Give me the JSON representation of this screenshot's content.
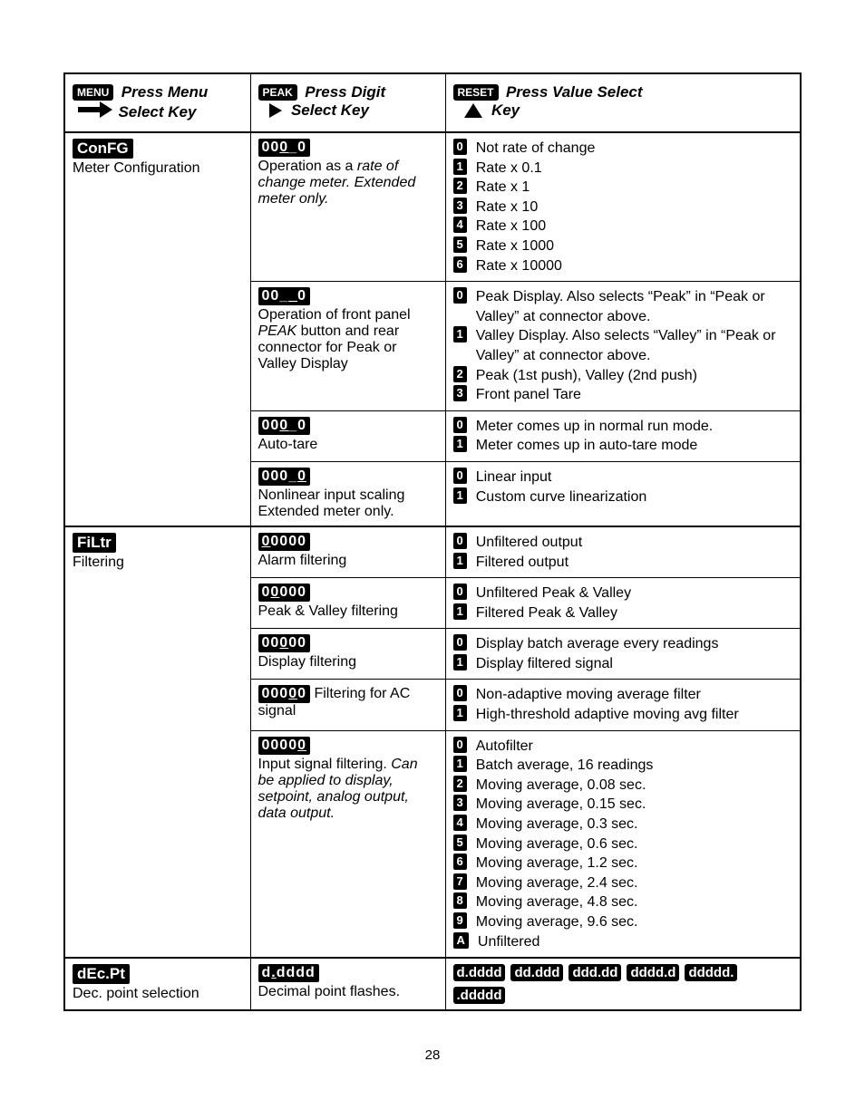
{
  "page_number": "28",
  "header": {
    "menu_badge": "MENU",
    "menu_line1": "Press Menu",
    "menu_line2": "Select Key",
    "peak_badge": "PEAK",
    "peak_line1": "Press Digit",
    "peak_line2": "Select Key",
    "reset_badge": "RESET",
    "reset_line1": "Press Value Select",
    "reset_line2": "Key"
  },
  "groups": [
    {
      "menu_term": "ConFG",
      "menu_desc": "Meter Configuration",
      "rows": [
        {
          "digit_html": "00<span class='hl'>0</span>_0",
          "digit_desc": "Operation as a <i>rate of change meter. Extended meter only.</i>",
          "values": [
            {
              "k": "0",
              "t": "Not rate of change"
            },
            {
              "k": "1",
              "t": "Rate x 0.1"
            },
            {
              "k": "2",
              "t": "Rate x 1"
            },
            {
              "k": "3",
              "t": "Rate x 10"
            },
            {
              "k": "4",
              "t": "Rate x 100"
            },
            {
              "k": "5",
              "t": "Rate x 1000"
            },
            {
              "k": "6",
              "t": "Rate x 10000"
            }
          ]
        },
        {
          "digit_html": "00_<span class='hl'>_</span>0",
          "digit_desc": "Operation of front panel <i>PEAK</i> button and rear connector for Peak or Valley Display",
          "values": [
            {
              "k": "0",
              "t": "Peak Display. Also selects “Peak” in “Peak or Valley” at connector above."
            },
            {
              "k": "1",
              "t": "Valley Display. Also selects “Valley” in “Peak or Valley” at connector above."
            },
            {
              "k": "2",
              "t": "Peak (1st push), Valley (2nd push)"
            },
            {
              "k": "3",
              "t": "Front panel Tare"
            }
          ]
        },
        {
          "digit_html": "00<span class='hl'>0</span>_0",
          "digit_desc": "Auto-tare",
          "values": [
            {
              "k": "0",
              "t": "Meter comes up in normal run mode."
            },
            {
              "k": "1",
              "t": "Meter comes up in auto-tare mode"
            }
          ]
        },
        {
          "digit_html": "000_<span class='hl'>0</span>",
          "digit_desc": "Nonlinear input scaling Extended meter only.",
          "values": [
            {
              "k": "0",
              "t": "Linear input"
            },
            {
              "k": "1",
              "t": "Custom curve linearization"
            }
          ]
        }
      ]
    },
    {
      "menu_term": "FiLtr",
      "menu_desc": "Filtering",
      "rows": [
        {
          "digit_html": "<span class='hl'>0</span>0000",
          "digit_desc": "Alarm filtering",
          "values": [
            {
              "k": "0",
              "t": "Unfiltered output"
            },
            {
              "k": "1",
              "t": "Filtered output"
            }
          ]
        },
        {
          "digit_html": "0<span class='hl'>0</span>000",
          "digit_desc": "Peak & Valley filtering",
          "values": [
            {
              "k": "0",
              "t": "Unfiltered Peak & Valley"
            },
            {
              "k": "1",
              "t": "Filtered Peak & Valley"
            }
          ]
        },
        {
          "digit_html": "00<span class='hl'>0</span>00",
          "digit_desc": "Display filtering",
          "values": [
            {
              "k": "0",
              "t": "Display batch average every readings"
            },
            {
              "k": "1",
              "t": "Display filtered signal"
            }
          ]
        },
        {
          "digit_html": "000<span class='hl'>0</span>0",
          "digit_desc_inline": "Filtering for AC signal",
          "values": [
            {
              "k": "0",
              "t": "Non-adaptive moving average filter"
            },
            {
              "k": "1",
              "t": "High-threshold adaptive moving avg filter"
            }
          ]
        },
        {
          "digit_html": "0000<span class='hl'>0</span>",
          "digit_desc": "Input signal filtering. <i>Can be applied to display, setpoint, analog output, data output.</i>",
          "values": [
            {
              "k": "0",
              "t": "Autofilter"
            },
            {
              "k": "1",
              "t": "Batch average, 16 readings"
            },
            {
              "k": "2",
              "t": "Moving average, 0.08 sec."
            },
            {
              "k": "3",
              "t": "Moving average, 0.15 sec."
            },
            {
              "k": "4",
              "t": "Moving average, 0.3 sec."
            },
            {
              "k": "5",
              "t": "Moving average, 0.6 sec."
            },
            {
              "k": "6",
              "t": "Moving average, 1.2 sec."
            },
            {
              "k": "7",
              "t": "Moving average, 2.4 sec."
            },
            {
              "k": "8",
              "t": "Moving average, 4.8 sec."
            },
            {
              "k": "9",
              "t": "Moving average, 9.6 sec."
            },
            {
              "k": "A",
              "t": "Unfiltered"
            }
          ]
        }
      ]
    },
    {
      "menu_term": "dEc.Pt",
      "menu_desc": "Dec. point selection",
      "rows": [
        {
          "digit_html": "d<span style='text-decoration:underline'>.</span>dddd",
          "digit_desc": "Decimal point flashes.",
          "decpt_badges": [
            "d.dddd",
            "dd.ddd",
            "ddd.dd",
            "dddd.d",
            "ddddd.",
            ".ddddd"
          ]
        }
      ]
    }
  ]
}
